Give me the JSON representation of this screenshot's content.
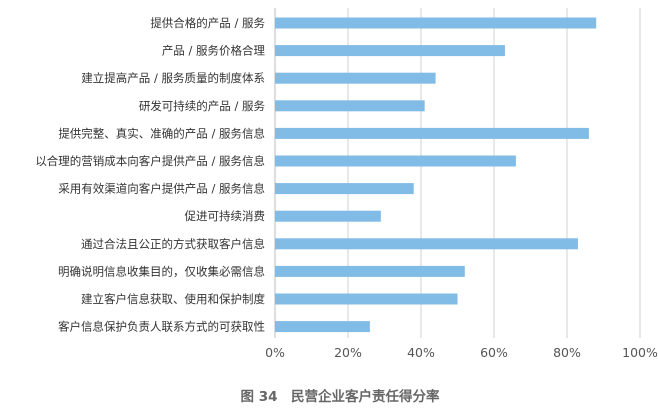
{
  "chart_data": {
    "type": "bar",
    "orientation": "horizontal",
    "title": "图 34　民营企业客户责任得分率",
    "xlabel": "",
    "ylabel": "",
    "xlim": [
      0,
      100
    ],
    "ticks": [
      0,
      20,
      40,
      60,
      80,
      100
    ],
    "tick_labels": [
      "0%",
      "20%",
      "40%",
      "60%",
      "80%",
      "100%"
    ],
    "grid": true,
    "bar_color": "#80bce6",
    "categories": [
      "提供合格的产品 / 服务",
      "产品 / 服务价格合理",
      "建立提高产品 / 服务质量的制度体系",
      "研发可持续的产品 / 服务",
      "提供完整、真实、准确的产品 / 服务信息",
      "以合理的营销成本向客户提供产品 / 服务信息",
      "采用有效渠道向客户提供产品 / 服务信息",
      "促进可持续消费",
      "通过合法且公正的方式获取客户信息",
      "明确说明信息收集目的，仅收集必需信息",
      "建立客户信息获取、使用和保护制度",
      "客户信息保护负责人联系方式的可获取性"
    ],
    "values": [
      88,
      63,
      44,
      41,
      86,
      66,
      38,
      29,
      83,
      52,
      50,
      26
    ]
  }
}
